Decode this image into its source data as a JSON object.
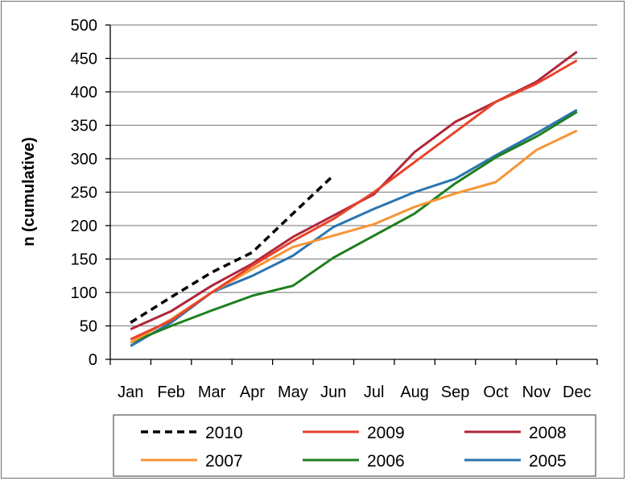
{
  "chart_data": {
    "type": "line",
    "ylabel": "n (cumulative)",
    "xlabel": "",
    "title": "",
    "categories": [
      "Jan",
      "Feb",
      "Mar",
      "Apr",
      "May",
      "Jun",
      "Jul",
      "Aug",
      "Sep",
      "Oct",
      "Nov",
      "Dec"
    ],
    "ylim": [
      0,
      500
    ],
    "yticks": [
      0,
      50,
      100,
      150,
      200,
      250,
      300,
      350,
      400,
      450,
      500
    ],
    "grid": true,
    "legend_position": "bottom",
    "series": [
      {
        "name": "2010",
        "color": "#000000",
        "dashed": true,
        "values": [
          55,
          93,
          130,
          160,
          218,
          275,
          null,
          null,
          null,
          null,
          null,
          null
        ]
      },
      {
        "name": "2009",
        "color": "#e8432b",
        "dashed": false,
        "values": [
          30,
          58,
          100,
          140,
          177,
          210,
          250,
          295,
          340,
          385,
          412,
          447
        ]
      },
      {
        "name": "2008",
        "color": "#b0263a",
        "dashed": false,
        "values": [
          45,
          72,
          110,
          143,
          183,
          215,
          247,
          310,
          355,
          385,
          415,
          460
        ]
      },
      {
        "name": "2007",
        "color": "#f79433",
        "dashed": false,
        "values": [
          25,
          60,
          100,
          135,
          168,
          185,
          202,
          228,
          248,
          265,
          313,
          342
        ]
      },
      {
        "name": "2006",
        "color": "#1e7f1e",
        "dashed": false,
        "values": [
          25,
          50,
          73,
          95,
          110,
          152,
          185,
          218,
          263,
          302,
          333,
          370
        ]
      },
      {
        "name": "2005",
        "color": "#2a75b0",
        "dashed": false,
        "values": [
          20,
          55,
          100,
          125,
          155,
          198,
          225,
          250,
          270,
          305,
          338,
          373
        ]
      }
    ]
  }
}
